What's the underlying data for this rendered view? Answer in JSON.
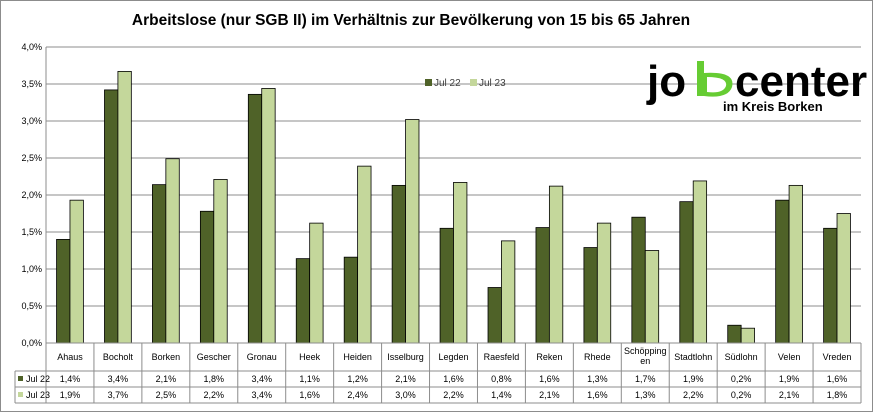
{
  "chart_data": {
    "type": "bar",
    "title": "Arbeitslose (nur SGB II) im Verhältnis zur Bevölkerung von 15 bis 65 Jahren",
    "categories": [
      "Ahaus",
      "Bocholt",
      "Borken",
      "Gescher",
      "Gronau",
      "Heek",
      "Heiden",
      "Isselburg",
      "Legden",
      "Raesfeld",
      "Reken",
      "Rhede",
      "Schöpping en",
      "Stadtlohn",
      "Südlohn",
      "Velen",
      "Vreden"
    ],
    "series": [
      {
        "name": "Jul 22",
        "color": "#4f6228",
        "values": [
          1.4,
          3.42,
          2.14,
          1.78,
          3.36,
          1.14,
          1.16,
          2.13,
          1.55,
          0.75,
          1.56,
          1.29,
          1.7,
          1.91,
          0.24,
          1.93,
          1.55
        ],
        "labels": [
          "1,4%",
          "3,4%",
          "2,1%",
          "1,8%",
          "3,4%",
          "1,1%",
          "1,2%",
          "2,1%",
          "1,6%",
          "0,8%",
          "1,6%",
          "1,3%",
          "1,7%",
          "1,9%",
          "0,2%",
          "1,9%",
          "1,6%"
        ]
      },
      {
        "name": "Jul 23",
        "color": "#c4d79b",
        "values": [
          1.93,
          3.67,
          2.49,
          2.21,
          3.44,
          1.62,
          2.39,
          3.02,
          2.17,
          1.38,
          2.12,
          1.62,
          1.25,
          2.19,
          0.2,
          2.13,
          1.75
        ],
        "labels": [
          "1,9%",
          "3,7%",
          "2,5%",
          "2,2%",
          "3,4%",
          "1,6%",
          "2,4%",
          "3,0%",
          "2,2%",
          "1,4%",
          "2,1%",
          "1,6%",
          "1,3%",
          "2,2%",
          "0,2%",
          "2,1%",
          "1,8%"
        ]
      }
    ],
    "ylim": [
      0,
      4.0
    ],
    "yticks": [
      "0,0%",
      "0,5%",
      "1,0%",
      "1,5%",
      "2,0%",
      "2,5%",
      "3,0%",
      "3,5%",
      "4,0%"
    ],
    "grid": true,
    "legend_position": "top-center",
    "data_table": true
  },
  "logo": {
    "word_left": "jo",
    "word_right": "center",
    "subtitle": "im Kreis Borken",
    "accent_color": "#66cc33"
  }
}
